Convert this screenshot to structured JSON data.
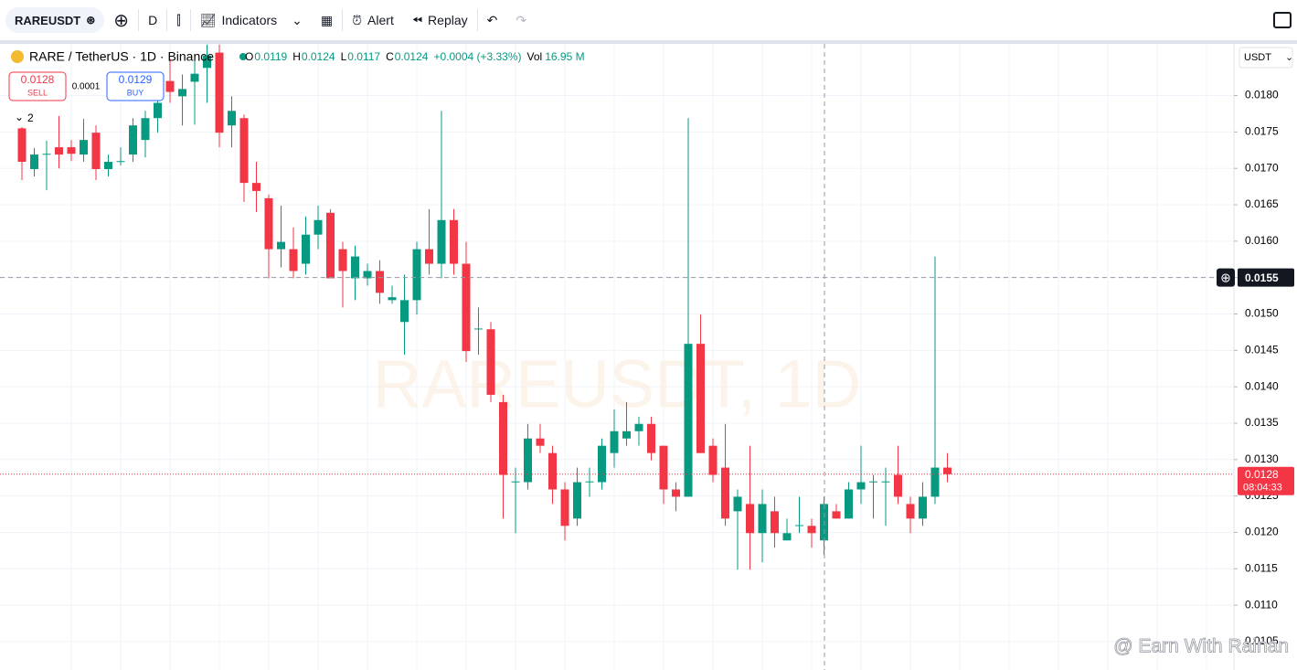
{
  "toolbar": {
    "symbol": "RAREUSDT",
    "interval": "D",
    "indicators": "Indicators",
    "alert": "Alert",
    "replay": "Replay"
  },
  "legend": {
    "pair": "RARE / TetherUS · 1D · Binance",
    "ohlc": [
      {
        "label": "O",
        "value": "0.0119"
      },
      {
        "label": "H",
        "value": "0.0124"
      },
      {
        "label": "L",
        "value": "0.0117"
      },
      {
        "label": "C",
        "value": "0.0124"
      }
    ],
    "change": "+0.0004 (+3.33%)",
    "vol_label": "Vol",
    "vol": "16.95 M"
  },
  "trade": {
    "sell_price": "0.0128",
    "sell": "SELL",
    "spread": "0.0001",
    "buy_price": "0.0129",
    "buy": "BUY"
  },
  "indicator_count": "2",
  "currency": "USDT",
  "watermark": "RAREUSDT, 1D",
  "credit": "@ Earn With Rainan",
  "chart_data": {
    "type": "candlestick",
    "up_color": "#089981",
    "down_color": "#f23645",
    "grid": true,
    "ylim": [
      0.01011,
      0.01871
    ],
    "yticks": [
      {
        "value": 0.0105,
        "label": "0.0105"
      },
      {
        "value": 0.011,
        "label": "0.0110"
      },
      {
        "value": 0.0115,
        "label": "0.0115"
      },
      {
        "value": 0.012,
        "label": "0.0120"
      },
      {
        "value": 0.0125,
        "label": "0.0125"
      },
      {
        "value": 0.013,
        "label": "0.0130"
      },
      {
        "value": 0.0135,
        "label": "0.0135"
      },
      {
        "value": 0.014,
        "label": "0.0140"
      },
      {
        "value": 0.0145,
        "label": "0.0145"
      },
      {
        "value": 0.015,
        "label": "0.0150"
      },
      {
        "value": 0.0155,
        "label": "0.0155"
      },
      {
        "value": 0.016,
        "label": "0.0160"
      },
      {
        "value": 0.0165,
        "label": "0.0165"
      },
      {
        "value": 0.017,
        "label": "0.0170"
      },
      {
        "value": 0.0175,
        "label": "0.0175"
      },
      {
        "value": 0.018,
        "label": "0.0180"
      }
    ],
    "crosshair": {
      "value": 0.0155,
      "label": "0.0155"
    },
    "last_price": {
      "value": 0.0128,
      "label": "0.0128",
      "countdown": "08:04:33"
    },
    "open": [
      0.01755,
      0.01699,
      0.01719,
      0.01729,
      0.01729,
      0.01719,
      0.01749,
      0.01699,
      0.01709,
      0.01719,
      0.01739,
      0.01769,
      0.0182,
      0.01799,
      0.01819,
      0.01838,
      0.01859,
      0.01759,
      0.01769,
      0.0168,
      0.01659,
      0.01589,
      0.01589,
      0.01569,
      0.01609,
      0.01639,
      0.01589,
      0.01549,
      0.01549,
      0.01559,
      0.01519,
      0.01489,
      0.01519,
      0.01589,
      0.01569,
      0.01629,
      0.01569,
      0.01479,
      0.01479,
      0.01379,
      0.01269,
      0.01269,
      0.01329,
      0.01309,
      0.01259,
      0.01219,
      0.01269,
      0.01269,
      0.01309,
      0.01329,
      0.01339,
      0.01349,
      0.01319,
      0.01259,
      0.01249,
      0.01459,
      0.01319,
      0.01289,
      0.01229,
      0.01239,
      0.01199,
      0.01229,
      0.01189,
      0.01209,
      0.01209,
      0.01189,
      0.01229,
      0.01219,
      0.01259,
      0.01269,
      0.01269,
      0.01279,
      0.01239,
      0.01219,
      0.01249,
      0.01289
    ],
    "high": [
      0.01778,
      0.01728,
      0.01738,
      0.01772,
      0.01739,
      0.01768,
      0.01759,
      0.01719,
      0.01729,
      0.01769,
      0.01779,
      0.018,
      0.0185,
      0.01829,
      0.0185,
      0.0187,
      0.0187,
      0.01799,
      0.01774,
      0.01709,
      0.01664,
      0.01649,
      0.01619,
      0.01634,
      0.01649,
      0.01644,
      0.01599,
      0.01594,
      0.01569,
      0.01574,
      0.01539,
      0.01554,
      0.01599,
      0.01644,
      0.01779,
      0.01644,
      0.01599,
      0.01509,
      0.01489,
      0.01389,
      0.01289,
      0.01349,
      0.01349,
      0.01319,
      0.01269,
      0.01289,
      0.01289,
      0.01329,
      0.01369,
      0.01379,
      0.01359,
      0.01359,
      0.01319,
      0.01269,
      0.01769,
      0.01499,
      0.01329,
      0.01349,
      0.01259,
      0.01319,
      0.01259,
      0.01249,
      0.01219,
      0.01249,
      0.01219,
      0.01249,
      0.01239,
      0.01269,
      0.01319,
      0.01279,
      0.01289,
      0.01319,
      0.01249,
      0.01269,
      0.01579,
      0.01309
    ],
    "low": [
      0.01684,
      0.01689,
      0.0167,
      0.017,
      0.0171,
      0.01709,
      0.01684,
      0.01689,
      0.01704,
      0.01709,
      0.01715,
      0.01749,
      0.0179,
      0.01759,
      0.0176,
      0.0179,
      0.01729,
      0.01729,
      0.01654,
      0.0164,
      0.01549,
      0.01564,
      0.01549,
      0.01554,
      0.01589,
      0.01549,
      0.01509,
      0.01519,
      0.01539,
      0.01514,
      0.01514,
      0.01444,
      0.01499,
      0.01554,
      0.01549,
      0.01554,
      0.01434,
      0.01444,
      0.01379,
      0.01219,
      0.01199,
      0.01259,
      0.01309,
      0.01239,
      0.01189,
      0.01209,
      0.01249,
      0.01259,
      0.01289,
      0.01319,
      0.01319,
      0.01299,
      0.01239,
      0.01229,
      0.01249,
      0.01309,
      0.01269,
      0.01209,
      0.01149,
      0.01149,
      0.01159,
      0.01179,
      0.01189,
      0.01199,
      0.01179,
      0.01169,
      0.01219,
      0.01219,
      0.01239,
      0.01219,
      0.01209,
      0.01239,
      0.01199,
      0.01209,
      0.01239,
      0.01269
    ],
    "close": [
      0.01709,
      0.01719,
      0.0172,
      0.01719,
      0.0172,
      0.01739,
      0.01699,
      0.01709,
      0.0171,
      0.01759,
      0.01769,
      0.0179,
      0.01805,
      0.01809,
      0.0183,
      0.01855,
      0.01749,
      0.01779,
      0.0168,
      0.01669,
      0.01589,
      0.01599,
      0.01559,
      0.01609,
      0.01629,
      0.01549,
      0.01559,
      0.01579,
      0.01559,
      0.01529,
      0.01523,
      0.01519,
      0.01589,
      0.01569,
      0.01629,
      0.01569,
      0.01449,
      0.0148,
      0.01389,
      0.01279,
      0.0127,
      0.01329,
      0.01319,
      0.01259,
      0.01209,
      0.01269,
      0.0127,
      0.01319,
      0.01339,
      0.01339,
      0.01349,
      0.01309,
      0.01259,
      0.01249,
      0.01459,
      0.01309,
      0.01279,
      0.01219,
      0.01249,
      0.01199,
      0.01239,
      0.01199,
      0.01199,
      0.0121,
      0.01199,
      0.01239,
      0.01219,
      0.01259,
      0.01269,
      0.0127,
      0.0127,
      0.01249,
      0.01219,
      0.01249,
      0.01289,
      0.0128
    ]
  }
}
